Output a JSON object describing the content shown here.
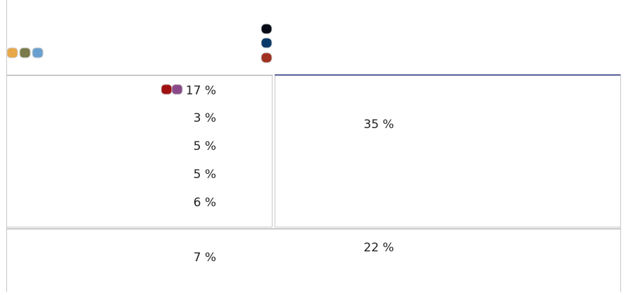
{
  "left_cell": {
    "values": [
      "17 %",
      "3 %",
      "5 %",
      "5 %",
      "6 %"
    ]
  },
  "right_cell": {
    "value": "35 %"
  },
  "bottom_row": {
    "left": "7 %",
    "right": "22 %"
  }
}
